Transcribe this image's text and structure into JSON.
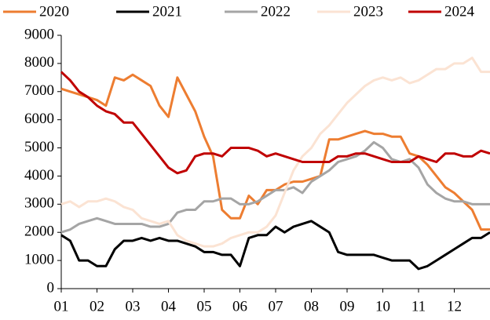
{
  "chart_data": {
    "type": "line",
    "x": [
      1,
      1.25,
      1.5,
      1.75,
      2,
      2.25,
      2.5,
      2.75,
      3,
      3.25,
      3.5,
      3.75,
      4,
      4.25,
      4.5,
      4.75,
      5,
      5.25,
      5.5,
      5.75,
      6,
      6.25,
      6.5,
      6.75,
      7,
      7.25,
      7.5,
      7.75,
      8,
      8.25,
      8.5,
      8.75,
      9,
      9.25,
      9.5,
      9.75,
      10,
      10.25,
      10.5,
      10.75,
      11,
      11.25,
      11.5,
      11.75,
      12,
      12.25,
      12.5,
      12.75,
      13
    ],
    "series": [
      {
        "name": "2020",
        "color": "#ed7d31",
        "values": [
          7100,
          7000,
          6900,
          6800,
          6700,
          6500,
          7500,
          7400,
          7600,
          7400,
          7200,
          6500,
          6100,
          7500,
          6900,
          6300,
          5400,
          4700,
          2800,
          2500,
          2500,
          3300,
          3000,
          3500,
          3500,
          3700,
          3800,
          3800,
          3900,
          4000,
          5300,
          5300,
          5400,
          5500,
          5600,
          5500,
          5500,
          5400,
          5400,
          4800,
          4700,
          4400,
          4000,
          3600,
          3400,
          3100,
          2800,
          2100,
          2100
        ]
      },
      {
        "name": "2021",
        "color": "#000000",
        "values": [
          1900,
          1700,
          1000,
          1000,
          800,
          800,
          1400,
          1700,
          1700,
          1800,
          1700,
          1800,
          1700,
          1700,
          1600,
          1500,
          1300,
          1300,
          1200,
          1200,
          800,
          1800,
          1900,
          1900,
          2200,
          2000,
          2200,
          2300,
          2400,
          2200,
          2000,
          1300,
          1200,
          1200,
          1200,
          1200,
          1100,
          1000,
          1000,
          1000,
          700,
          800,
          1000,
          1200,
          1400,
          1600,
          1800,
          1800,
          2000
        ]
      },
      {
        "name": "2022",
        "color": "#a5a5a5",
        "values": [
          2000,
          2100,
          2300,
          2400,
          2500,
          2400,
          2300,
          2300,
          2300,
          2300,
          2200,
          2200,
          2300,
          2700,
          2800,
          2800,
          3100,
          3100,
          3200,
          3200,
          3000,
          3000,
          3100,
          3300,
          3500,
          3500,
          3600,
          3400,
          3800,
          4000,
          4200,
          4500,
          4600,
          4700,
          4900,
          5200,
          5000,
          4600,
          4500,
          4600,
          4300,
          3700,
          3400,
          3200,
          3100,
          3100,
          3000,
          3000,
          3000
        ]
      },
      {
        "name": "2023",
        "color": "#fbe3d3",
        "values": [
          3000,
          3100,
          2900,
          3100,
          3100,
          3200,
          3100,
          2900,
          2800,
          2500,
          2400,
          2300,
          2400,
          1900,
          1700,
          1600,
          1500,
          1500,
          1600,
          1800,
          1900,
          2000,
          2000,
          2200,
          2600,
          3400,
          4200,
          4700,
          5000,
          5500,
          5800,
          6200,
          6600,
          6900,
          7200,
          7400,
          7500,
          7400,
          7500,
          7300,
          7400,
          7600,
          7800,
          7800,
          8000,
          8000,
          8200,
          7700,
          7700
        ]
      },
      {
        "name": "2024",
        "color": "#c00000",
        "values": [
          7700,
          7400,
          7000,
          6800,
          6500,
          6300,
          6200,
          5900,
          5900,
          5500,
          5100,
          4700,
          4300,
          4100,
          4200,
          4700,
          4800,
          4800,
          4700,
          5000,
          5000,
          5000,
          4900,
          4700,
          4800,
          4700,
          4600,
          4500,
          4500,
          4500,
          4500,
          4700,
          4700,
          4800,
          4800,
          4700,
          4600,
          4500,
          4500,
          4500,
          4700,
          4600,
          4500,
          4800,
          4800,
          4700,
          4700,
          4900,
          4800
        ]
      }
    ],
    "xlim": [
      1,
      13
    ],
    "xticks": [
      {
        "value": 1,
        "label": "01"
      },
      {
        "value": 2,
        "label": "02"
      },
      {
        "value": 3,
        "label": "03"
      },
      {
        "value": 4,
        "label": "04"
      },
      {
        "value": 5,
        "label": "05"
      },
      {
        "value": 6,
        "label": "06"
      },
      {
        "value": 7,
        "label": "07"
      },
      {
        "value": 8,
        "label": "08"
      },
      {
        "value": 9,
        "label": "09"
      },
      {
        "value": 10,
        "label": "10"
      },
      {
        "value": 11,
        "label": "11"
      },
      {
        "value": 12,
        "label": "12"
      }
    ],
    "ylim": [
      0,
      9000
    ],
    "yticks": [
      0,
      1000,
      2000,
      3000,
      4000,
      5000,
      6000,
      7000,
      8000,
      9000
    ],
    "legend": "top"
  }
}
